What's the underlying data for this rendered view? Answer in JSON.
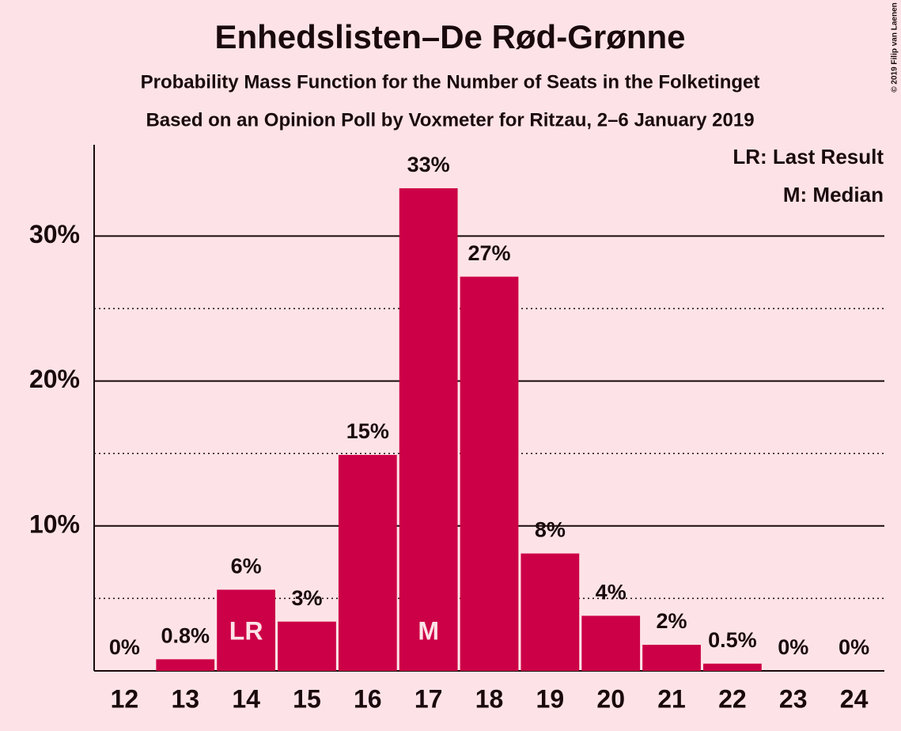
{
  "chart_data": {
    "type": "bar",
    "title": "Enhedslisten–De Rød-Grønne",
    "subtitles": [
      "Probability Mass Function for the Number of Seats in the Folketinget",
      "Based on an Opinion Poll by Voxmeter for Ritzau, 2–6 January 2019"
    ],
    "credit": "© 2019 Filip van Laenen",
    "categories": [
      "12",
      "13",
      "14",
      "15",
      "16",
      "17",
      "18",
      "19",
      "20",
      "21",
      "22",
      "23",
      "24"
    ],
    "values": [
      0,
      0.8,
      5.6,
      3.4,
      14.9,
      33.3,
      27.2,
      8.1,
      3.8,
      1.8,
      0.5,
      0,
      0
    ],
    "value_labels": [
      "0%",
      "0.8%",
      "6%",
      "3%",
      "15%",
      "33%",
      "27%",
      "8%",
      "4%",
      "2%",
      "0.5%",
      "0%",
      "0%"
    ],
    "color": "#cc0047",
    "ylim": [
      0,
      36.3
    ],
    "yticks": [
      {
        "value": 10,
        "label": "10%"
      },
      {
        "value": 20,
        "label": "20%"
      },
      {
        "value": 30,
        "label": "30%"
      }
    ],
    "minor_yticks": [
      5,
      15,
      25
    ],
    "grid": true,
    "annotations": [
      {
        "text": "LR",
        "category": "14"
      },
      {
        "text": "M",
        "category": "17"
      }
    ],
    "legend": [
      "LR: Last Result",
      "M: Median"
    ]
  }
}
